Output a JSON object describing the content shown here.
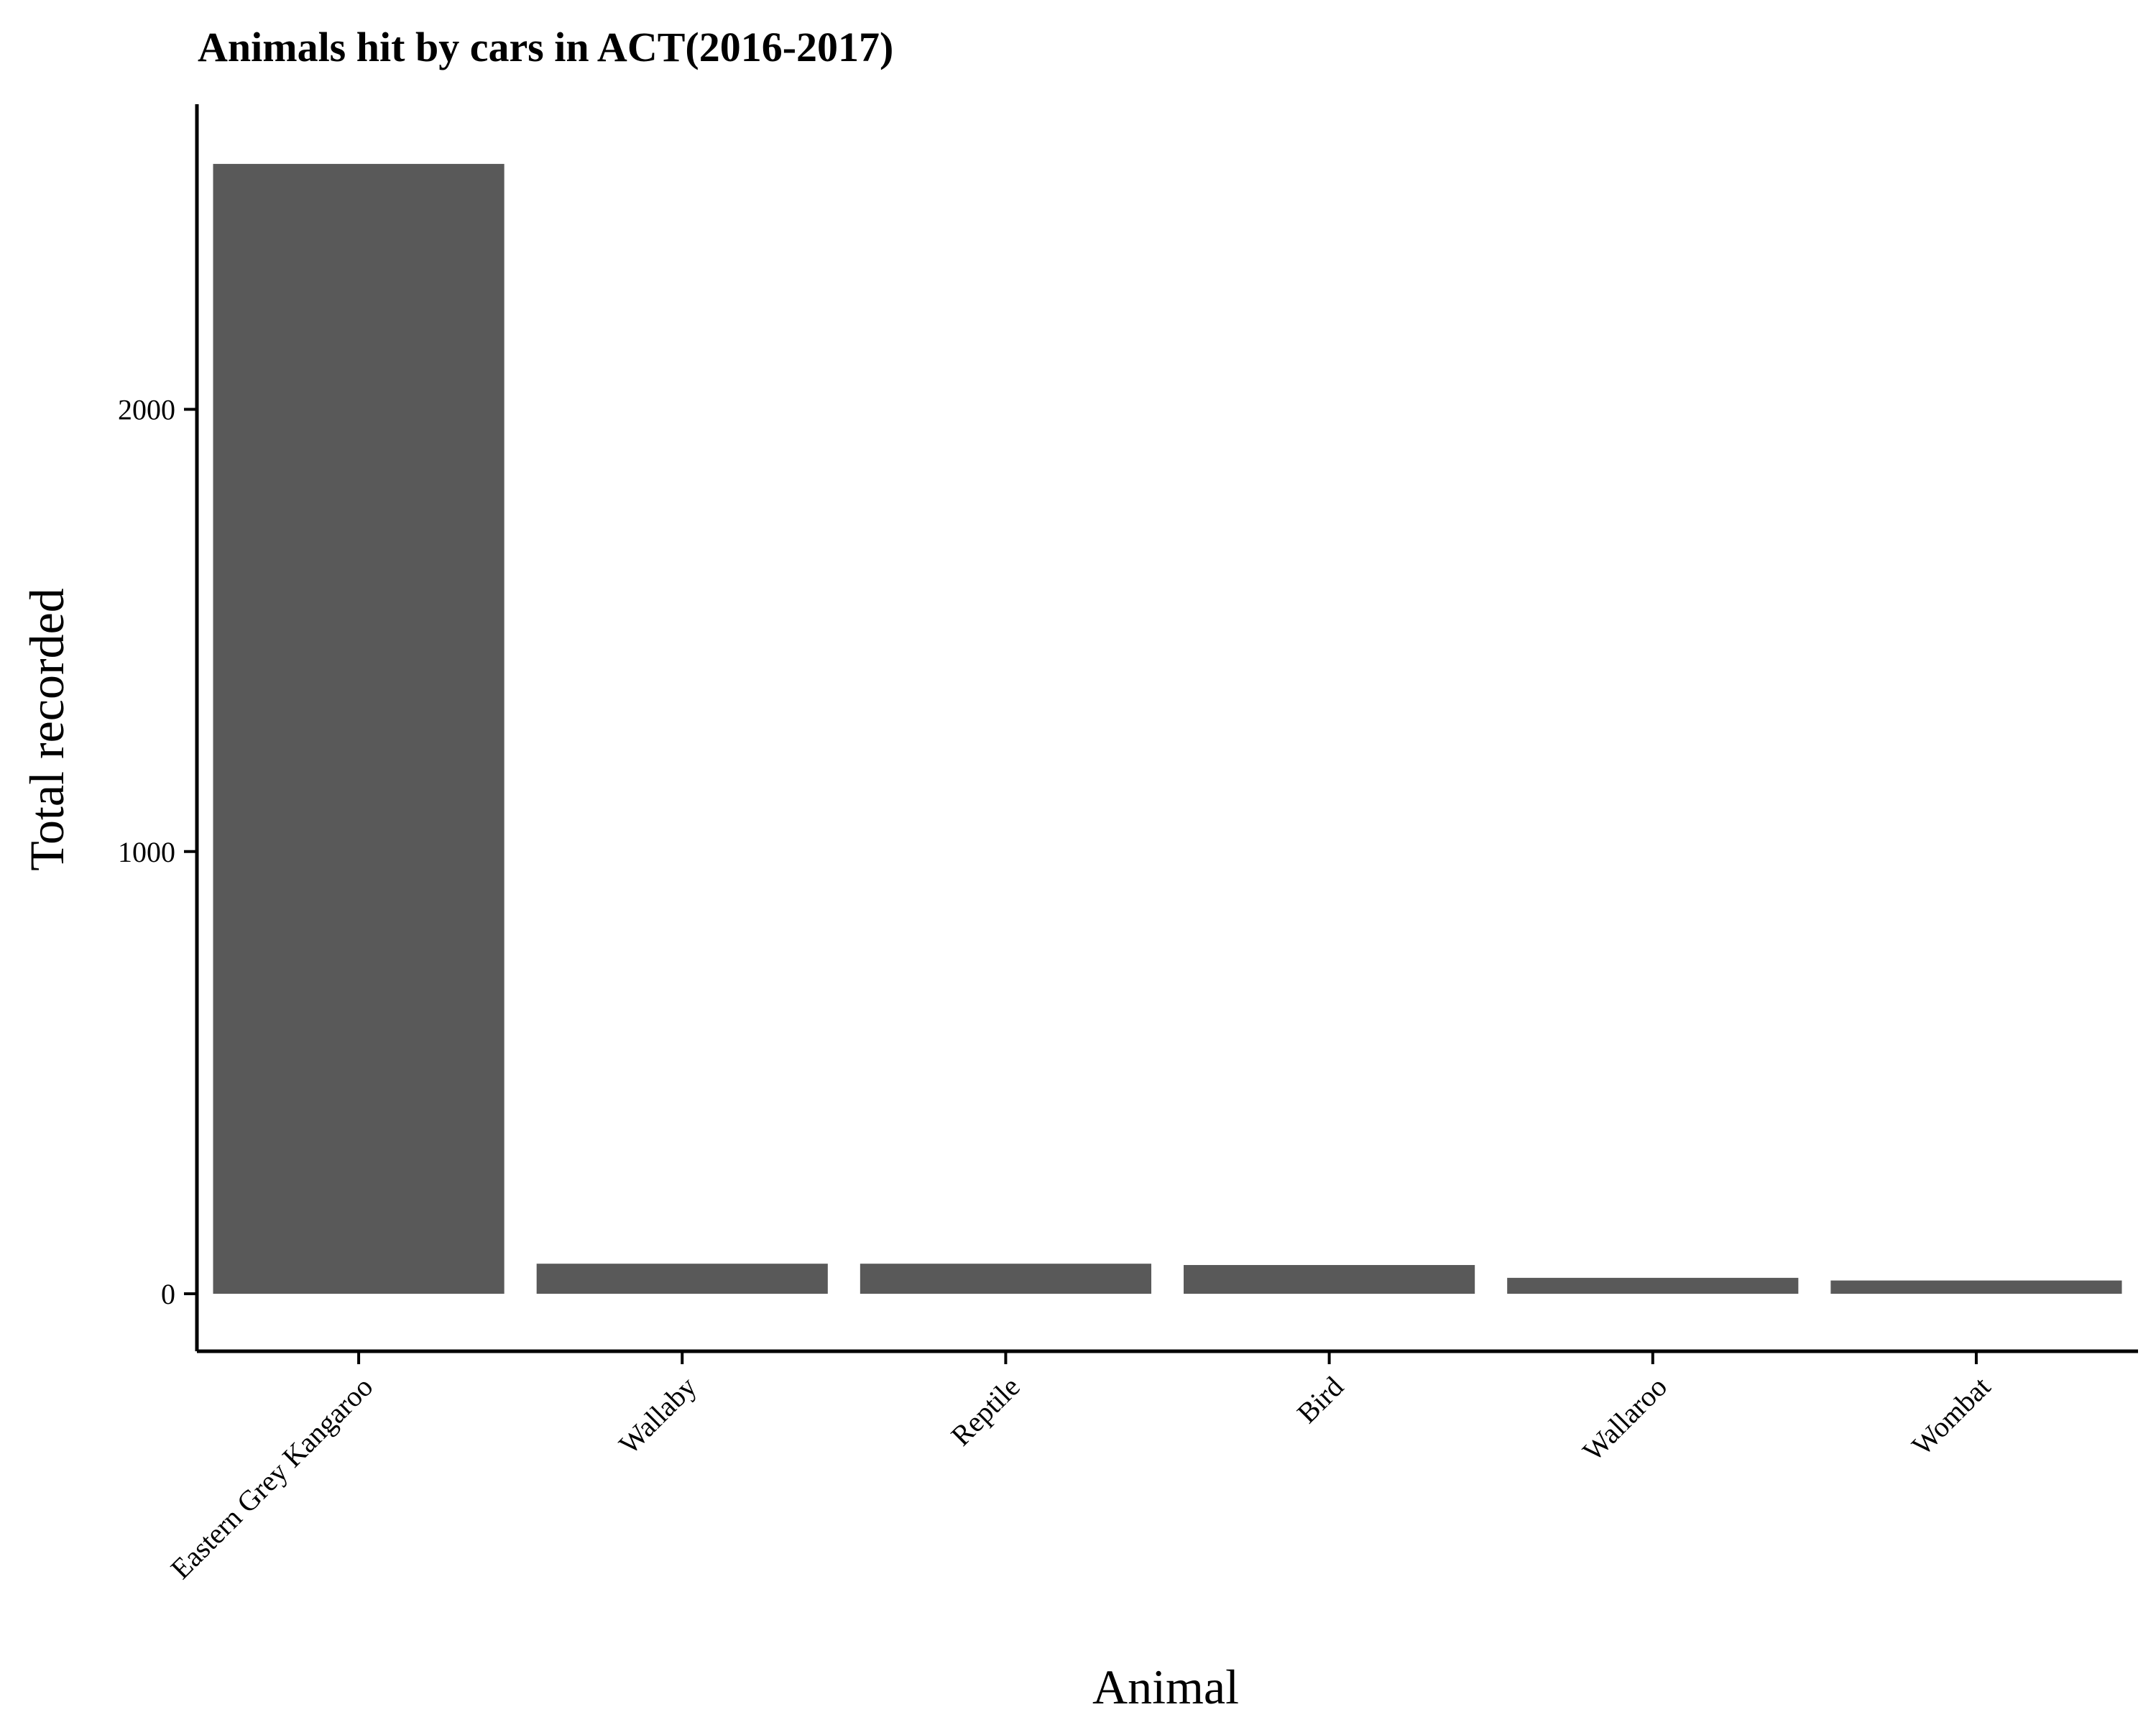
{
  "chart_data": {
    "type": "bar",
    "title": "Animals hit by cars in ACT(2016-2017)",
    "xlabel": "Animal",
    "ylabel": "Total recorded",
    "categories": [
      "Eastern Grey Kangaroo",
      "Wallaby",
      "Reptile",
      "Bird",
      "Wallaroo",
      "Wombat"
    ],
    "values": [
      2555,
      68,
      68,
      65,
      36,
      30
    ],
    "ylim": [
      -130,
      2690
    ],
    "yticks": [
      0,
      1000,
      2000
    ],
    "ytick_labels": [
      "0",
      "1000",
      "2000"
    ],
    "bar_color": "#595959",
    "grid": false,
    "legend": "none"
  }
}
